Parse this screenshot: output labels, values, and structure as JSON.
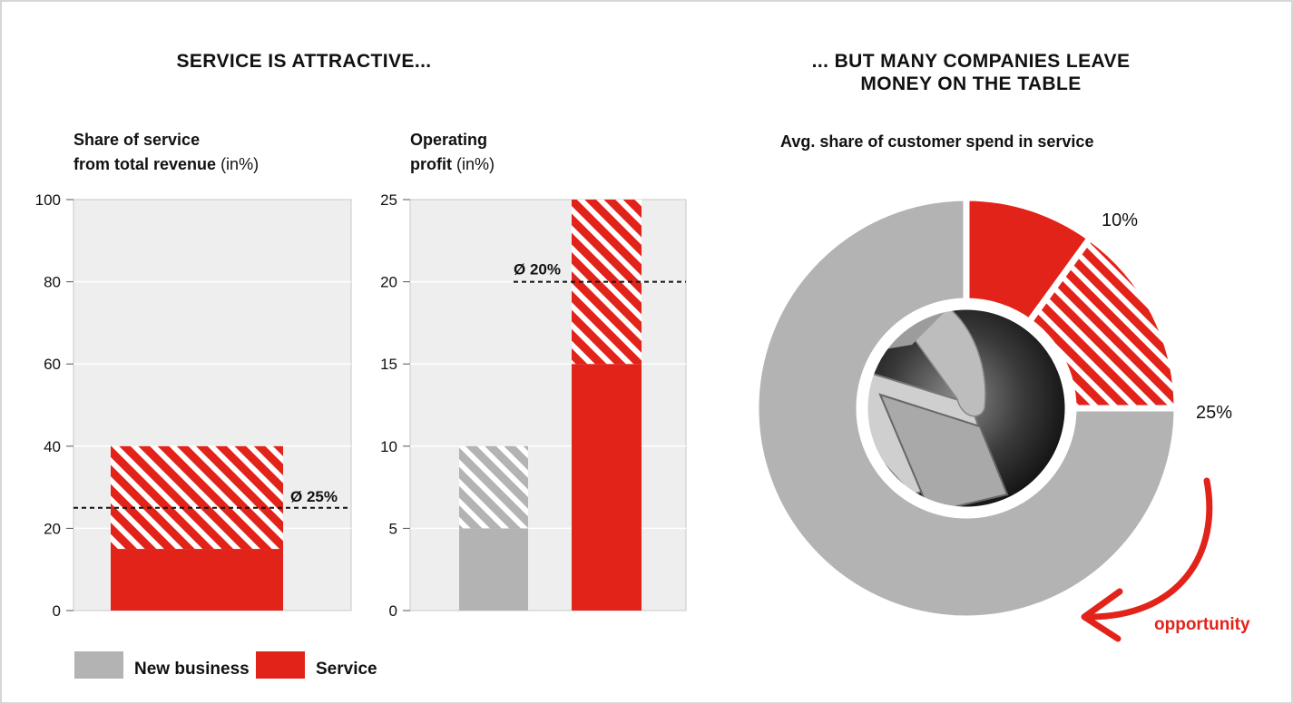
{
  "headings": {
    "left": "SERVICE IS ATTRACTIVE...",
    "right_line1": "... BUT MANY COMPANIES LEAVE",
    "right_line2": "MONEY ON THE TABLE"
  },
  "colors": {
    "service": "#e2231a",
    "new_business": "#b3b3b3",
    "panel_bg": "#eeeeee",
    "border": "#c8c8c8"
  },
  "legend": [
    {
      "label": "New business",
      "color": "#b3b3b3"
    },
    {
      "label": "Service",
      "color": "#e2231a"
    }
  ],
  "chart_data": [
    {
      "type": "bar",
      "title": "Share of service from total revenue",
      "title_line1": "Share of service",
      "title_line2": "from total revenue",
      "unit": "(in%)",
      "ylim": [
        0,
        100
      ],
      "yticks": [
        0,
        20,
        40,
        60,
        80,
        100
      ],
      "grid": true,
      "bars": [
        {
          "series": "Service",
          "solid": [
            0,
            15
          ],
          "hatched": [
            15,
            40
          ]
        }
      ],
      "reference_line": {
        "value": 25,
        "label": "Ø 25%"
      }
    },
    {
      "type": "bar",
      "title": "Operating profit",
      "title_line1": "Operating",
      "title_line2": "profit",
      "unit": "(in%)",
      "ylim": [
        0,
        25
      ],
      "yticks": [
        0,
        5,
        10,
        15,
        20,
        25
      ],
      "grid": true,
      "bars": [
        {
          "series": "New business",
          "solid": [
            0,
            5
          ],
          "hatched": [
            5,
            10
          ]
        },
        {
          "series": "Service",
          "solid": [
            0,
            15
          ],
          "hatched": [
            15,
            25
          ]
        }
      ],
      "reference_line": {
        "value": 20,
        "label": "Ø 20%"
      }
    },
    {
      "type": "pie",
      "title": "Avg. share of customer spend in service",
      "slices": [
        {
          "name": "",
          "value": 10,
          "style": "solid",
          "label": "10%"
        },
        {
          "name": "",
          "value": 15,
          "style": "hatched",
          "label": ""
        },
        {
          "name": "",
          "value": 75,
          "style": "grey",
          "label": ""
        }
      ],
      "outer_labels": [
        {
          "text": "10%",
          "position": "top-right"
        },
        {
          "text": "25%",
          "position": "right"
        }
      ],
      "annotation": "opportunity",
      "center_image": "photo of hand holding euro banknotes"
    }
  ]
}
